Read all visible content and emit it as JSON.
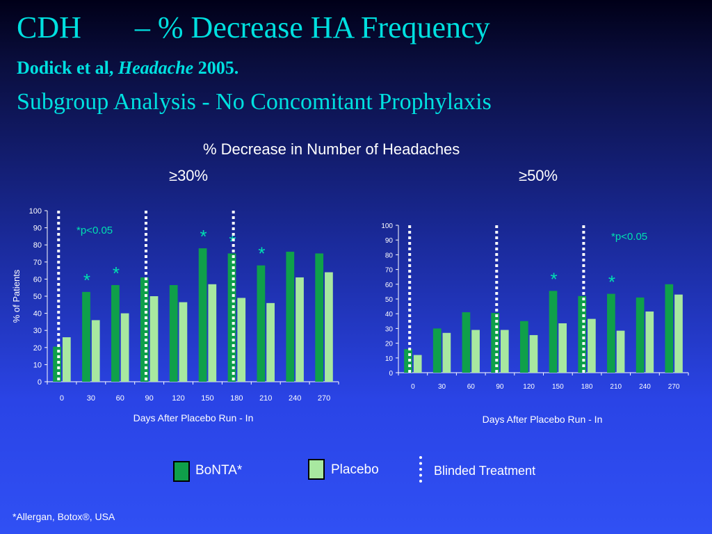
{
  "title": "CDH       – % Decrease HA Frequency",
  "subtitle_author": "Dodick et al,",
  "subtitle_journal": "Headache",
  "subtitle_year": "2005.",
  "subtitle_analysis": "Subgroup Analysis - No Concomitant Prophylaxis",
  "chart_heading": "% Decrease in Number of Headaches",
  "legend": {
    "bonta": "BoNTA*",
    "placebo": "Placebo",
    "blinded": "Blinded Treatment"
  },
  "footnote": "*Allergan, Botox®, USA",
  "colors": {
    "bonta": "#0fa04a",
    "placebo": "#a8e8a0",
    "text_cyan": "#00e0e0",
    "annotation": "#00e0b0"
  },
  "chart_data": [
    {
      "type": "bar",
      "panel_label": "≥30%",
      "categories": [
        "0",
        "30",
        "60",
        "90",
        "120",
        "150",
        "180",
        "210",
        "240",
        "270"
      ],
      "series": [
        {
          "name": "BoNTA*",
          "values": [
            20.5,
            52.5,
            56.5,
            61,
            56.5,
            78,
            75,
            68,
            76,
            75
          ]
        },
        {
          "name": "Placebo",
          "values": [
            26,
            36,
            40,
            50,
            46.5,
            57,
            49,
            46,
            61,
            64
          ]
        }
      ],
      "significant_categories": [
        "30",
        "60",
        "150",
        "180",
        "210"
      ],
      "blinded_markers": [
        "0",
        "90",
        "180"
      ],
      "annotation": "*p<0.05",
      "xlabel": "Days After Placebo Run - In",
      "ylabel": "% of Patients",
      "ylim": [
        0,
        100
      ],
      "yticks": [
        0,
        10,
        20,
        30,
        40,
        50,
        60,
        70,
        80,
        90,
        100
      ]
    },
    {
      "type": "bar",
      "panel_label": "≥50%",
      "categories": [
        "0",
        "30",
        "60",
        "90",
        "120",
        "150",
        "180",
        "210",
        "240",
        "270"
      ],
      "series": [
        {
          "name": "BoNTA*",
          "values": [
            16,
            30,
            41,
            40.5,
            35,
            55.5,
            52,
            53.5,
            51,
            60
          ]
        },
        {
          "name": "Placebo",
          "values": [
            12,
            27,
            29,
            29,
            25.5,
            33.5,
            36.5,
            28.5,
            41.5,
            53
          ]
        }
      ],
      "significant_categories": [
        "150",
        "210"
      ],
      "blinded_markers": [
        "0",
        "90",
        "180"
      ],
      "annotation": "*p<0.05",
      "xlabel": "Days After Placebo Run - In",
      "ylabel": "",
      "ylim": [
        0,
        100
      ],
      "yticks": [
        0,
        10,
        20,
        30,
        40,
        50,
        60,
        70,
        80,
        90,
        100
      ]
    }
  ]
}
